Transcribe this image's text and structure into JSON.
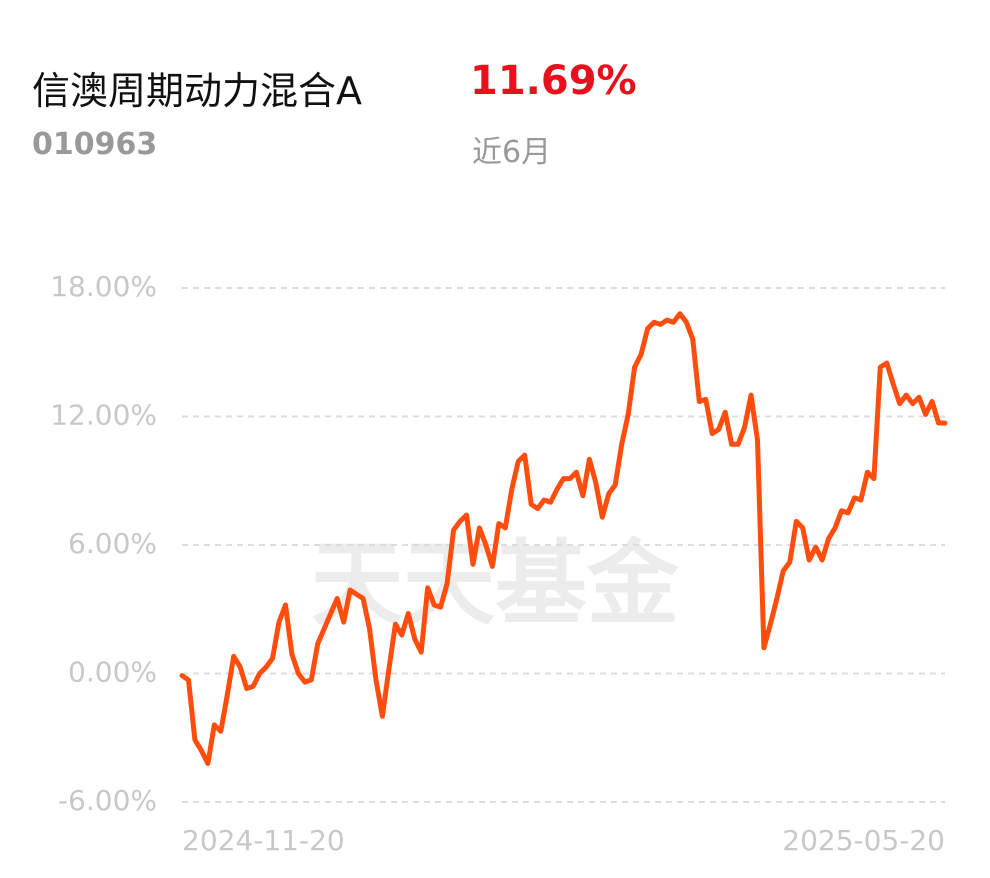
{
  "header": {
    "title": "信澳周期动力混合A",
    "code": "010963",
    "change": "11.69%",
    "period": "近6月"
  },
  "watermark": "天天基金",
  "chart_data": {
    "type": "line",
    "color": "#ff4d0d",
    "grid": true,
    "ylim": [
      -6,
      18
    ],
    "yticks": [
      {
        "value": -6,
        "label": "-6.00%"
      },
      {
        "value": 0,
        "label": "0.00%"
      },
      {
        "value": 6,
        "label": "6.00%"
      },
      {
        "value": 12,
        "label": "12.00%"
      },
      {
        "value": 18,
        "label": "18.00%"
      }
    ],
    "categories": [
      "2024-11-20",
      null,
      null,
      null,
      null,
      null,
      null,
      null,
      null,
      null,
      null,
      null,
      null,
      null,
      null,
      null,
      null,
      null,
      null,
      null,
      null,
      null,
      null,
      null,
      null,
      null,
      null,
      null,
      null,
      null,
      null,
      null,
      null,
      null,
      null,
      null,
      null,
      null,
      null,
      null,
      null,
      null,
      null,
      null,
      null,
      null,
      null,
      null,
      null,
      null,
      null,
      null,
      null,
      null,
      null,
      null,
      null,
      null,
      null,
      null,
      null,
      null,
      null,
      null,
      null,
      null,
      null,
      null,
      null,
      null,
      null,
      null,
      null,
      null,
      null,
      null,
      null,
      null,
      null,
      null,
      null,
      null,
      null,
      null,
      null,
      null,
      null,
      null,
      null,
      null,
      null,
      null,
      null,
      null,
      null,
      null,
      null,
      null,
      null,
      null,
      null,
      null,
      null,
      null,
      null,
      null,
      null,
      null,
      null,
      null,
      null,
      null,
      null,
      null,
      null,
      null,
      null,
      null,
      "2025-05-20"
    ],
    "values": [
      -0.1,
      -0.3,
      -3.1,
      -3.6,
      -4.2,
      -2.4,
      -2.7,
      -1.0,
      0.8,
      0.3,
      -0.7,
      -0.6,
      0.0,
      0.3,
      0.7,
      2.4,
      3.2,
      0.9,
      0.0,
      -0.4,
      -0.3,
      1.4,
      2.1,
      2.8,
      3.5,
      2.4,
      3.9,
      3.7,
      3.5,
      2.1,
      -0.3,
      -2.0,
      0.2,
      2.3,
      1.8,
      2.8,
      1.6,
      1.0,
      4.0,
      3.2,
      3.1,
      4.2,
      6.7,
      7.1,
      7.4,
      5.1,
      6.8,
      6.0,
      5.0,
      7.0,
      6.8,
      8.6,
      9.9,
      10.2,
      7.9,
      7.7,
      8.1,
      8.0,
      8.6,
      9.1,
      9.1,
      9.4,
      8.3,
      10.0,
      8.9,
      7.3,
      8.4,
      8.8,
      10.7,
      12.1,
      14.3,
      14.9,
      16.1,
      16.4,
      16.3,
      16.5,
      16.4,
      16.8,
      16.4,
      15.6,
      12.7,
      12.8,
      11.2,
      11.4,
      12.2,
      10.7,
      10.7,
      11.5,
      13.0,
      10.9,
      1.2,
      2.3,
      3.5,
      4.8,
      5.2,
      7.1,
      6.8,
      5.3,
      5.9,
      5.3,
      6.3,
      6.8,
      7.6,
      7.5,
      8.2,
      8.1,
      9.4,
      9.1,
      14.3,
      14.5,
      13.5,
      12.6,
      13.0,
      12.6,
      12.9,
      12.1,
      12.7,
      11.7,
      11.69
    ]
  }
}
